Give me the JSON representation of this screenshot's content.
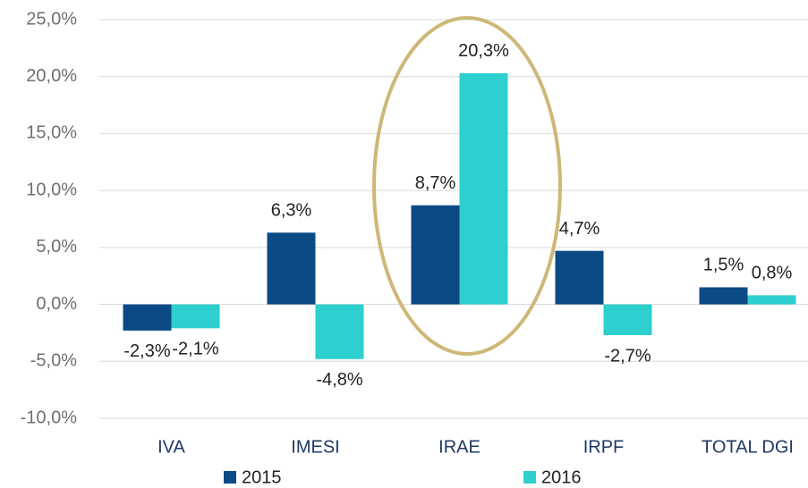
{
  "chart_data": {
    "type": "bar",
    "categories": [
      "IVA",
      "IMESI",
      "IRAE",
      "IRPF",
      "TOTAL DGI"
    ],
    "series": [
      {
        "name": "2015",
        "color": "#0b4a85",
        "values": [
          -2.3,
          6.3,
          8.7,
          4.7,
          1.5
        ],
        "value_labels": [
          "-2,3%",
          "6,3%",
          "8,7%",
          "4,7%",
          "1,5%"
        ]
      },
      {
        "name": "2016",
        "color": "#2ecfcf",
        "values": [
          -2.1,
          -4.8,
          20.3,
          -2.7,
          0.8
        ],
        "value_labels": [
          "-2,1%",
          "-4,8%",
          "20,3%",
          "-2,7%",
          "0,8%"
        ]
      }
    ],
    "ylim": [
      -10,
      25
    ],
    "yticks": [
      {
        "value": -10,
        "label": "-10,0%"
      },
      {
        "value": -5,
        "label": "-5,0%"
      },
      {
        "value": 0,
        "label": "0,0%"
      },
      {
        "value": 5,
        "label": "5,0%"
      },
      {
        "value": 10,
        "label": "10,0%"
      },
      {
        "value": 15,
        "label": "15,0%"
      },
      {
        "value": 20,
        "label": "20,0%"
      },
      {
        "value": 25,
        "label": "25,0%"
      }
    ],
    "grid": true,
    "legend": "bottom"
  }
}
